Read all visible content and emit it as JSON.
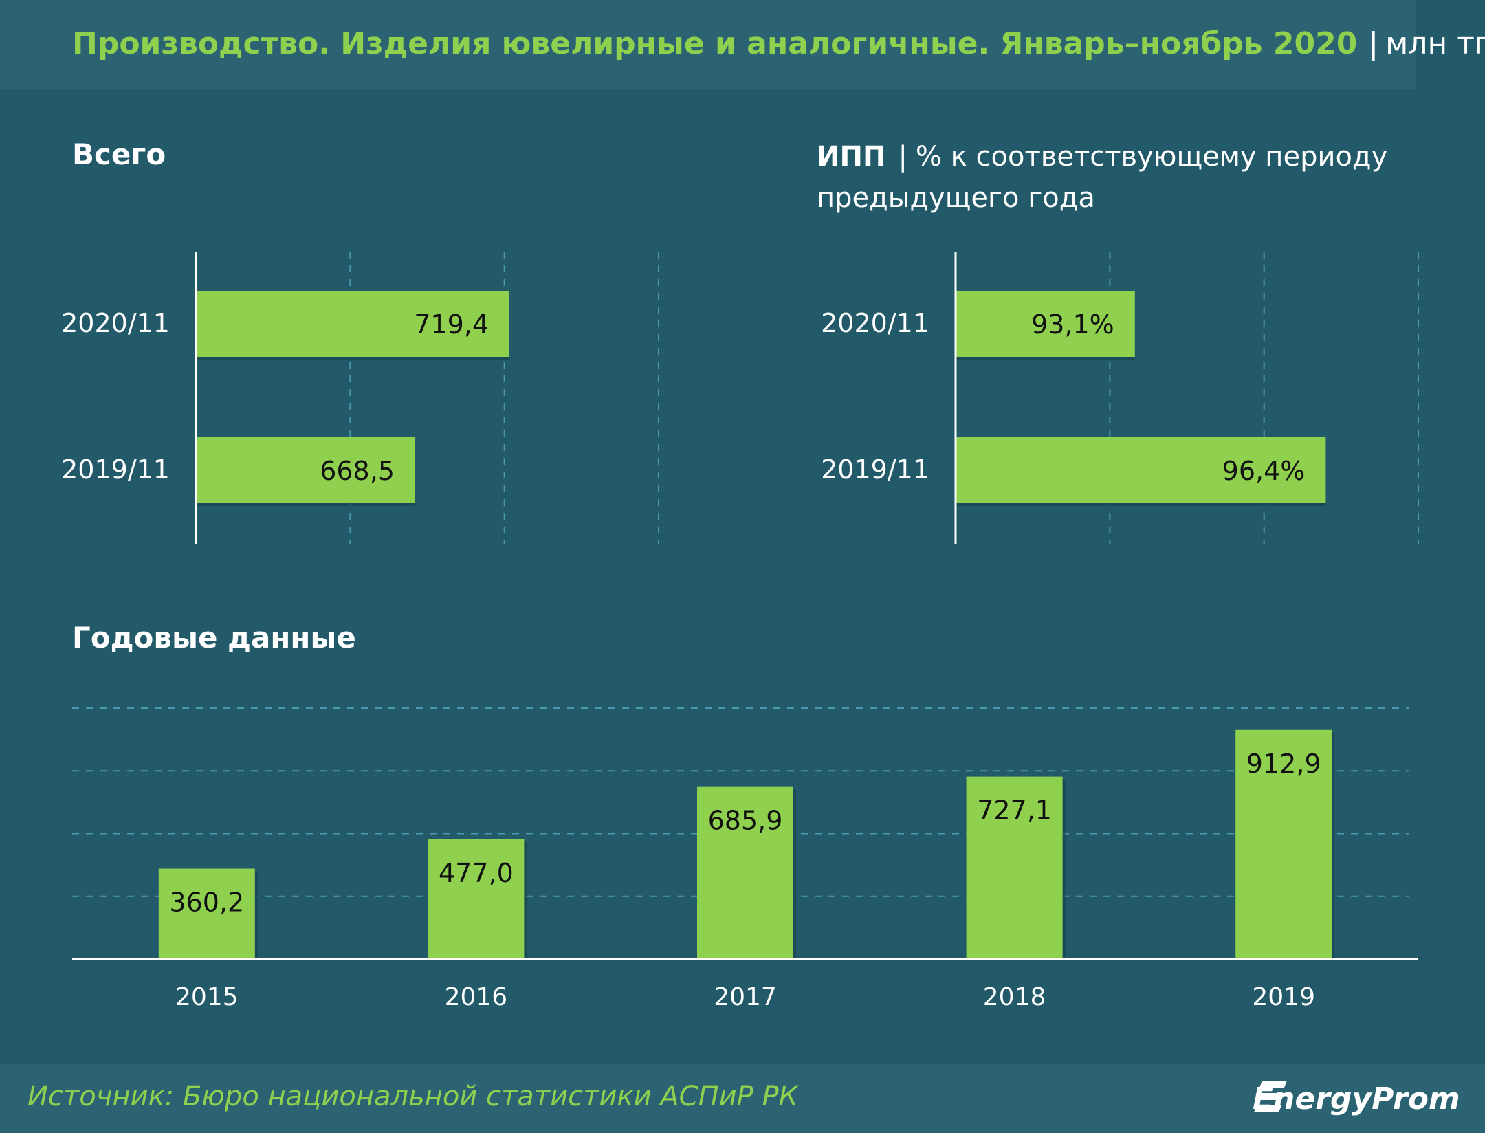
{
  "header": {
    "title": "Производство. Изделия ювелирные и аналогичные. Январь–ноябрь 2020",
    "separator": "|",
    "unit": "млн тг"
  },
  "sections": {
    "total_title": "Всего",
    "ipp_title": "ИПП",
    "ipp_separator": "|",
    "ipp_subtitle": "% к соответствующему периоду предыдущего года",
    "annual_title": "Годовые данные"
  },
  "chart_data": [
    {
      "type": "bar",
      "orientation": "horizontal",
      "title": "Всего",
      "categories": [
        "2020/11",
        "2019/11"
      ],
      "values": [
        719.4,
        668.5
      ],
      "value_labels": [
        "719,4",
        "668,5"
      ],
      "xlim": [
        550,
        800
      ],
      "grid": true
    },
    {
      "type": "bar",
      "orientation": "horizontal",
      "title": "ИПП",
      "categories": [
        "2020/11",
        "2019/11"
      ],
      "values": [
        93.1,
        96.4
      ],
      "value_labels": [
        "93,1%",
        "96,4%"
      ],
      "xlim": [
        90,
        98
      ],
      "grid": true
    },
    {
      "type": "bar",
      "orientation": "vertical",
      "title": "Годовые данные",
      "categories": [
        "2015",
        "2016",
        "2017",
        "2018",
        "2019"
      ],
      "values": [
        360.2,
        477.0,
        685.9,
        727.1,
        912.9
      ],
      "value_labels": [
        "360,2",
        "477,0",
        "685,9",
        "727,1",
        "912,9"
      ],
      "ylim": [
        0,
        1000
      ],
      "grid": true
    }
  ],
  "footer": {
    "source": "Источник: Бюро национальной  статистики АСПиР РК",
    "logo_text": "EnergyProm"
  },
  "colors": {
    "background": "#225a6a",
    "bar": "#8fd14f",
    "accent_text": "#8fd14f",
    "grid": "#4b9aae"
  }
}
